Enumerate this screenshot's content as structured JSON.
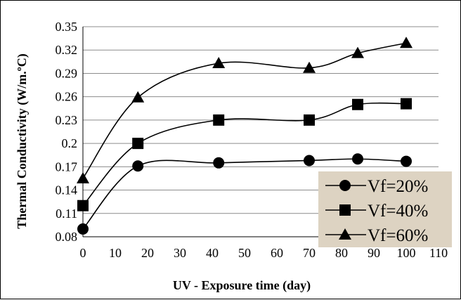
{
  "chart_data": {
    "type": "line",
    "xlabel": "UV - Exposure time (day)",
    "ylabel": "Thermal Conductivity (W/m.ºC)",
    "xlim": [
      0,
      110
    ],
    "ylim": [
      0.08,
      0.35
    ],
    "x_ticks": [
      "0",
      "10",
      "20",
      "30",
      "40",
      "50",
      "60",
      "70",
      "80",
      "90",
      "100",
      "110"
    ],
    "y_ticks": [
      "0.08",
      "0.11",
      "0.14",
      "0.17",
      "0.2",
      "0.23",
      "0.26",
      "0.29",
      "0.32",
      "0.35"
    ],
    "grid": "horizontal",
    "legend_position": "bottom-right",
    "x": [
      0,
      17,
      42,
      70,
      85,
      100
    ],
    "series": [
      {
        "name": "Vf=20%",
        "marker": "circle",
        "values": [
          0.09,
          0.171,
          0.175,
          0.178,
          0.18,
          0.177
        ]
      },
      {
        "name": "Vf=40%",
        "marker": "square",
        "values": [
          0.12,
          0.2,
          0.23,
          0.23,
          0.25,
          0.251
        ]
      },
      {
        "name": "Vf=60%",
        "marker": "triangle",
        "values": [
          0.155,
          0.259,
          0.303,
          0.297,
          0.316,
          0.329
        ]
      }
    ]
  },
  "colors": {
    "line": "#000000",
    "grid": "#8c8c8c",
    "legend_bg": "#ddd3c2"
  }
}
